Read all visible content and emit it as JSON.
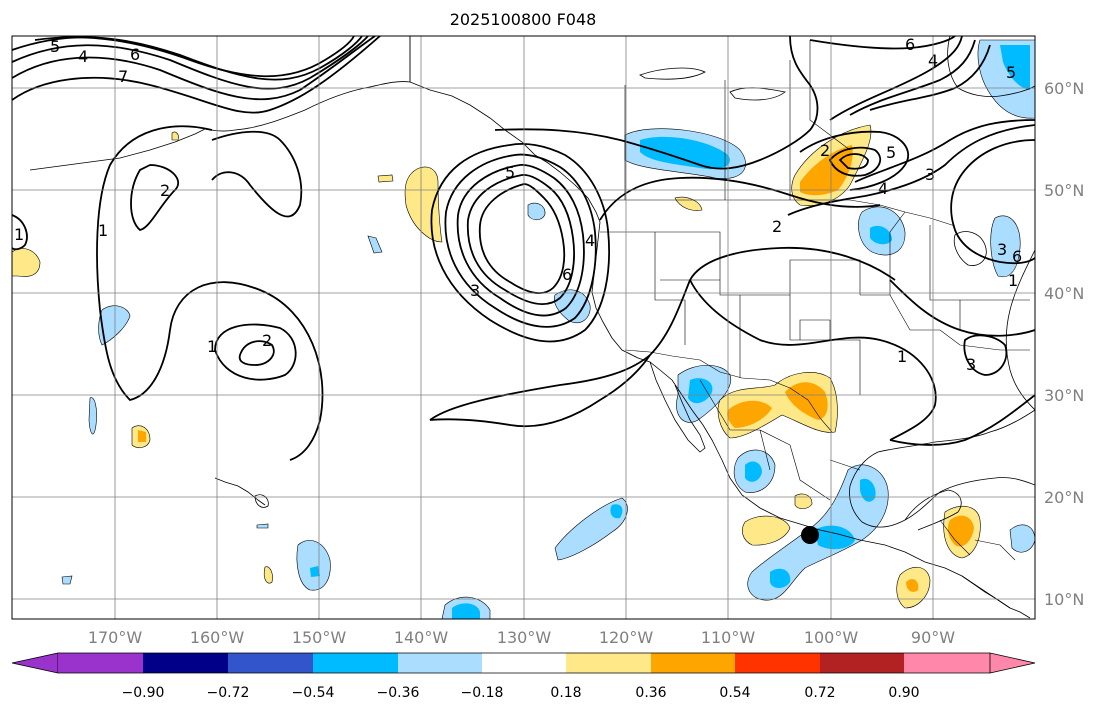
{
  "title": "2025100800 F048",
  "lon_labels": [
    "170°W",
    "160°W",
    "150°W",
    "140°W",
    "130°W",
    "120°W",
    "110°W",
    "100°W",
    "90°W"
  ],
  "lat_labels": [
    "60°N",
    "50°N",
    "40°N",
    "30°N",
    "20°N",
    "10°N"
  ],
  "colorbar": {
    "labels": [
      "−0.90",
      "−0.72",
      "−0.54",
      "−0.36",
      "−0.18",
      "0.18",
      "0.36",
      "0.54",
      "0.72",
      "0.90"
    ],
    "colors": [
      "#9933cc",
      "#000088",
      "#3355cc",
      "#00bbff",
      "#aaddff",
      "#ffffff",
      "#ffe888",
      "#ffa500",
      "#ff3300",
      "#b22222",
      "#ff88aa"
    ]
  },
  "contour_labels": [
    "5",
    "4",
    "6",
    "7",
    "1",
    "2",
    "1",
    "2",
    "1",
    "6",
    "5",
    "4",
    "3",
    "2",
    "1",
    "2",
    "3",
    "4",
    "5",
    "6",
    "3",
    "4",
    "5",
    "6",
    "1",
    "3"
  ],
  "fill_colors": {
    "light_blue": "#aaddff",
    "blue": "#00bbff",
    "light_yellow": "#ffe888",
    "orange": "#ffa500"
  }
}
